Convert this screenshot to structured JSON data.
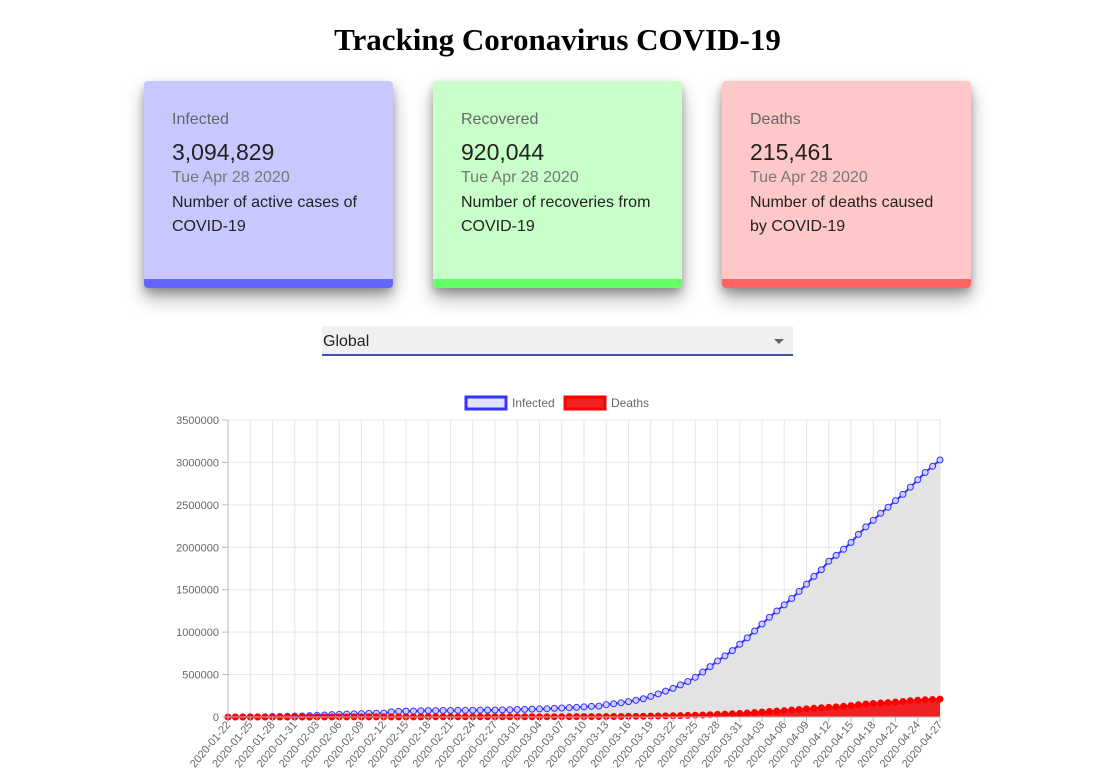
{
  "page": {
    "title": "Tracking Coronavirus COVID-19"
  },
  "cards": {
    "infected": {
      "label": "Infected",
      "value": "3,094,829",
      "date": "Tue Apr 28 2020",
      "desc": "Number of active cases of COVID-19"
    },
    "recovered": {
      "label": "Recovered",
      "value": "920,044",
      "date": "Tue Apr 28 2020",
      "desc": "Number of recoveries from COVID-19"
    },
    "deaths": {
      "label": "Deaths",
      "value": "215,461",
      "date": "Tue Apr 28 2020",
      "desc": "Number of deaths caused by COVID-19"
    }
  },
  "country_select": {
    "value": "Global"
  },
  "colors": {
    "infected_line": "#3333ff",
    "infected_fill": "#e3e3e3",
    "deaths_line": "#ff0000",
    "deaths_fill": "#ee2222",
    "grid": "#e6e6e6",
    "tick_text": "#666666"
  },
  "chart_data": {
    "type": "line",
    "x": [
      "2020-01-22",
      "2020-01-23",
      "2020-01-24",
      "2020-01-25",
      "2020-01-26",
      "2020-01-27",
      "2020-01-28",
      "2020-01-29",
      "2020-01-30",
      "2020-01-31",
      "2020-02-01",
      "2020-02-02",
      "2020-02-03",
      "2020-02-04",
      "2020-02-05",
      "2020-02-06",
      "2020-02-07",
      "2020-02-08",
      "2020-02-09",
      "2020-02-10",
      "2020-02-11",
      "2020-02-12",
      "2020-02-13",
      "2020-02-14",
      "2020-02-15",
      "2020-02-16",
      "2020-02-17",
      "2020-02-18",
      "2020-02-19",
      "2020-02-20",
      "2020-02-21",
      "2020-02-22",
      "2020-02-23",
      "2020-02-24",
      "2020-02-25",
      "2020-02-26",
      "2020-02-27",
      "2020-02-28",
      "2020-02-29",
      "2020-03-01",
      "2020-03-02",
      "2020-03-03",
      "2020-03-04",
      "2020-03-05",
      "2020-03-06",
      "2020-03-07",
      "2020-03-08",
      "2020-03-09",
      "2020-03-10",
      "2020-03-11",
      "2020-03-12",
      "2020-03-13",
      "2020-03-14",
      "2020-03-15",
      "2020-03-16",
      "2020-03-17",
      "2020-03-18",
      "2020-03-19",
      "2020-03-20",
      "2020-03-21",
      "2020-03-22",
      "2020-03-23",
      "2020-03-24",
      "2020-03-25",
      "2020-03-26",
      "2020-03-27",
      "2020-03-28",
      "2020-03-29",
      "2020-03-30",
      "2020-03-31",
      "2020-04-01",
      "2020-04-02",
      "2020-04-03",
      "2020-04-04",
      "2020-04-05",
      "2020-04-06",
      "2020-04-07",
      "2020-04-08",
      "2020-04-09",
      "2020-04-10",
      "2020-04-11",
      "2020-04-12",
      "2020-04-13",
      "2020-04-14",
      "2020-04-15",
      "2020-04-16",
      "2020-04-17",
      "2020-04-18",
      "2020-04-19",
      "2020-04-20",
      "2020-04-21",
      "2020-04-22",
      "2020-04-23",
      "2020-04-24",
      "2020-04-25",
      "2020-04-26",
      "2020-04-27"
    ],
    "tick_labels": [
      "2020-01-22",
      "2020-01-25",
      "2020-01-28",
      "2020-01-31",
      "2020-02-03",
      "2020-02-06",
      "2020-02-09",
      "2020-02-12",
      "2020-02-15",
      "2020-02-18",
      "2020-02-21",
      "2020-02-24",
      "2020-02-27",
      "2020-03-01",
      "2020-03-04",
      "2020-03-07",
      "2020-03-10",
      "2020-03-13",
      "2020-03-16",
      "2020-03-19",
      "2020-03-22",
      "2020-03-25",
      "2020-03-28",
      "2020-03-31",
      "2020-04-03",
      "2020-04-06",
      "2020-04-09",
      "2020-04-12",
      "2020-04-15",
      "2020-04-18",
      "2020-04-21",
      "2020-04-24",
      "2020-04-27"
    ],
    "series": [
      {
        "name": "Infected",
        "values": [
          555,
          654,
          941,
          1434,
          2118,
          2927,
          5578,
          6166,
          8234,
          9927,
          12038,
          16787,
          19881,
          23892,
          27635,
          30794,
          34391,
          37120,
          40150,
          42762,
          44802,
          45221,
          60368,
          66885,
          69030,
          71224,
          73258,
          75136,
          75639,
          76197,
          76819,
          78572,
          78958,
          79561,
          80406,
          81388,
          82746,
          84112,
          86011,
          88369,
          90306,
          92840,
          95120,
          97886,
          101801,
          105847,
          109821,
          113590,
          118620,
          125875,
          128352,
          145205,
          156101,
          167454,
          181574,
          197102,
          214821,
          242570,
          272208,
          304507,
          336953,
          378235,
          418045,
          467653,
          529591,
          593291,
          660693,
          720140,
          782389,
          857487,
          932605,
          1013157,
          1095917,
          1176060,
          1249754,
          1321481,
          1396476,
          1479804,
          1565278,
          1657526,
          1735650,
          1834721,
          1904838,
          1976191,
          2056054,
          2152437,
          2240190,
          2317759,
          2401378,
          2472259,
          2549294,
          2624083,
          2708403,
          2795796,
          2881140,
          2955033,
          3029000
        ]
      },
      {
        "name": "Deaths",
        "values": [
          17,
          18,
          26,
          42,
          56,
          82,
          131,
          133,
          171,
          213,
          259,
          362,
          426,
          492,
          564,
          634,
          719,
          806,
          906,
          1013,
          1113,
          1118,
          1371,
          1523,
          1666,
          1770,
          1868,
          2007,
          2122,
          2247,
          2251,
          2458,
          2469,
          2629,
          2708,
          2770,
          2814,
          2872,
          2941,
          2996,
          3085,
          3160,
          3254,
          3348,
          3460,
          3558,
          3803,
          3996,
          4262,
          4615,
          4720,
          5404,
          5819,
          6440,
          7126,
          7905,
          8733,
          9867,
          11299,
          12973,
          14623,
          16497,
          18615,
          21181,
          23970,
          27198,
          30652,
          33925,
          37582,
          42107,
          46809,
          53190,
          58787,
          64606,
          69374,
          74565,
          81865,
          88338,
          95455,
          102525,
          108502,
          114090,
          119481,
          125983,
          134176,
          143800,
          153821,
          159509,
          165044,
          169986,
          176583,
          183027,
          190858,
          197159,
          202846,
          206544,
          211167
        ]
      }
    ],
    "ylim": [
      0,
      3500000
    ],
    "yticks": [
      0,
      500000,
      1000000,
      1500000,
      2000000,
      2500000,
      3000000,
      3500000
    ],
    "grid": true,
    "legend": "top-center"
  }
}
